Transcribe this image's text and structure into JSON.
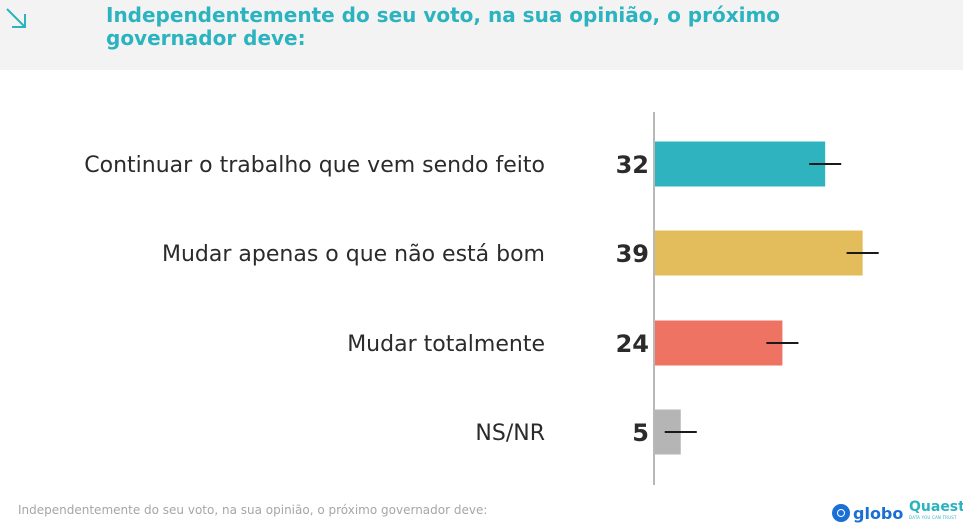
{
  "header": {
    "title": "Independentemente do seu voto, na sua opinião, o próximo governador deve:"
  },
  "footer": {
    "caption": "Independentemente do seu voto, na sua opinião, o próximo governador deve:"
  },
  "logos": {
    "globo": "globo",
    "quaest": "Quaest",
    "quaest_tagline": "DATA YOU CAN TRUST"
  },
  "colors": {
    "title": "#2bb3bf",
    "bar_1": "#2fb3bf",
    "bar_2": "#e3bd5b",
    "bar_3": "#ee7363",
    "bar_4": "#b5b5b5"
  },
  "chart_data": {
    "type": "bar",
    "orientation": "horizontal",
    "categories": [
      "Continuar o trabalho que vem sendo feito",
      "Mudar apenas o que não está bom",
      "Mudar totalmente",
      "NS/NR"
    ],
    "values": [
      32,
      39,
      24,
      5
    ],
    "value_labels": [
      "32",
      "39",
      "24",
      "5"
    ],
    "error_bars": true,
    "error_margin": 3,
    "colors": [
      "#2fb3bf",
      "#e3bd5b",
      "#ee7363",
      "#b5b5b5"
    ],
    "xlim": [
      0,
      60
    ],
    "grid": false,
    "legend": false
  }
}
